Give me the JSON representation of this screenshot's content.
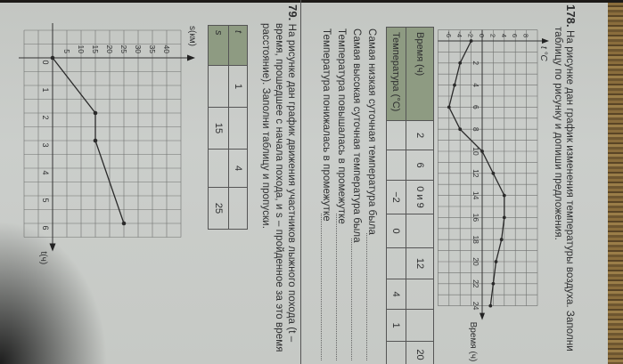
{
  "colors": {
    "page": "#c8cbc8",
    "table_header": "#8e9b82",
    "ink": "#2e2f30",
    "wood": "#7a6035"
  },
  "exercise_178": {
    "number": "178.",
    "line1": "На рисунке дан график изменения температуры воздуха. Заполни",
    "line2": "таблицу по рисунку и допиши предложения.",
    "table": {
      "row_headers": [
        "Время (ч)",
        "Температура (°C)"
      ],
      "time": [
        "2",
        "6",
        "0 и 9",
        "",
        "12",
        "",
        "",
        "20"
      ],
      "temperature": [
        "",
        "",
        "−2",
        "0",
        "",
        "4",
        "1",
        ""
      ]
    },
    "sentences": [
      "Самая низкая суточная температура была",
      "Самая высокая суточная температура была",
      "Температура повышалась в промежутке",
      "Температура понижалась в промежутке"
    ]
  },
  "exercise_79": {
    "number": "79.",
    "line1": "На рисунке дан график движения участников лыжного похода (t –",
    "line2": "время, прошедшее с начала похода, и s – пройденное за это время",
    "line3": "расстояние). Заполни таблицу и пропуски.",
    "table": {
      "row_headers": [
        "t",
        "s"
      ],
      "t": [
        "1",
        "",
        "4",
        ""
      ],
      "s": [
        "",
        "15",
        "",
        "25"
      ]
    }
  },
  "chart_data": [
    {
      "type": "line",
      "title": "",
      "xlabel": "Время (ч)",
      "ylabel": "t °C",
      "xlim": [
        -1,
        24
      ],
      "ylim": [
        -8,
        10
      ],
      "grid": true,
      "x_ticks": [
        "2",
        "4",
        "6",
        "8",
        "10",
        "12",
        "14",
        "16",
        "18",
        "20",
        "22",
        "24"
      ],
      "x_tick_values": [
        2,
        4,
        6,
        8,
        10,
        12,
        14,
        16,
        18,
        20,
        22,
        24
      ],
      "y_ticks": [
        "8",
        "6",
        "4",
        "2",
        "0",
        "-2",
        "-4",
        "-6"
      ],
      "y_tick_values": [
        8,
        6,
        4,
        2,
        0,
        -2,
        -4,
        -6
      ],
      "x": [
        0,
        2,
        4,
        6,
        8,
        10,
        12,
        14,
        16,
        18,
        20,
        22,
        24
      ],
      "y": [
        -2,
        -4,
        -5,
        -6,
        -4,
        0,
        2,
        4,
        4,
        3.5,
        2.5,
        2,
        1.5
      ]
    },
    {
      "type": "line",
      "title": "",
      "xlabel": "t(ч)",
      "ylabel": "s(км)",
      "xlim": [
        -1,
        6.5
      ],
      "ylim": [
        -10,
        45
      ],
      "grid": true,
      "x_ticks": [
        "0",
        "1",
        "2",
        "3",
        "4",
        "5",
        "6"
      ],
      "x_tick_values": [
        0,
        1,
        2,
        3,
        4,
        5,
        6
      ],
      "y_ticks": [
        "40",
        "35",
        "30",
        "25",
        "20",
        "15",
        "10",
        "5"
      ],
      "y_tick_values": [
        40,
        35,
        30,
        25,
        20,
        15,
        10,
        5
      ],
      "x": [
        0,
        2,
        3,
        6
      ],
      "y": [
        0,
        15,
        15,
        25
      ]
    }
  ]
}
